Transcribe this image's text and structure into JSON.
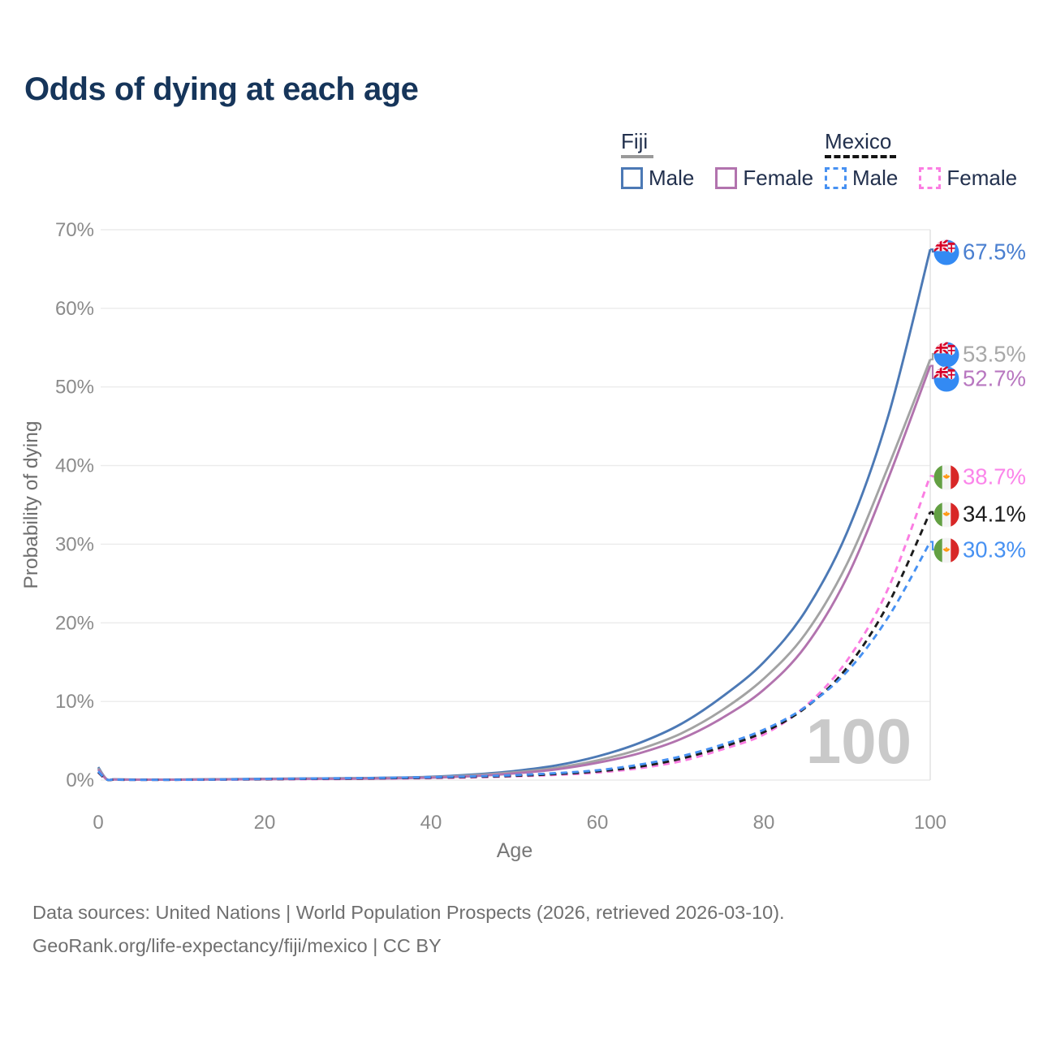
{
  "title": "Odds of dying at each age",
  "legend": {
    "groups": [
      {
        "label": "Fiji",
        "line_style": "solid",
        "underline_color": "#9a9a9a",
        "items": [
          {
            "label": "Male",
            "color": "#4c79b5"
          },
          {
            "label": "Female",
            "color": "#b273ae"
          }
        ]
      },
      {
        "label": "Mexico",
        "line_style": "dashed",
        "underline_color": "#141414",
        "items": [
          {
            "label": "Male",
            "color": "#4791f2"
          },
          {
            "label": "Female",
            "color": "#fb7de2"
          }
        ]
      }
    ]
  },
  "watermark_age": "100",
  "footer": {
    "line1": "Data sources: United Nations | World Population Prospects (2026, retrieved 2026-03-10).",
    "line2": "GeoRank.org/life-expectancy/fiji/mexico | CC BY"
  },
  "chart_data": {
    "type": "line",
    "title": "Odds of dying at each age",
    "xlabel": "Age",
    "ylabel": "Probability of dying",
    "xlim": [
      0,
      100
    ],
    "ylim_pct": [
      0,
      70
    ],
    "x_tick_labels": [
      "0",
      "20",
      "40",
      "60",
      "80",
      "100"
    ],
    "x_tick_values": [
      0,
      20,
      40,
      60,
      80,
      100
    ],
    "y_tick_labels": [
      "0%",
      "10%",
      "20%",
      "30%",
      "40%",
      "50%",
      "60%",
      "70%"
    ],
    "y_tick_values": [
      0,
      10,
      20,
      30,
      40,
      50,
      60,
      70
    ],
    "grid": "horizontal",
    "hover_age": 100,
    "ages": [
      0,
      1,
      2,
      5,
      10,
      15,
      20,
      25,
      30,
      35,
      40,
      45,
      50,
      55,
      60,
      65,
      70,
      75,
      80,
      85,
      90,
      95,
      100
    ],
    "series": [
      {
        "name": "Fiji Male",
        "country": "Fiji",
        "sex": "Male",
        "line_style": "solid",
        "color": "#4c79b5",
        "label_color": "#4a7fd0",
        "end_label": "67.5%",
        "end_value_pct": 67.5,
        "flag": "fiji-flag-icon",
        "values_pct": [
          1.65,
          0.12,
          0.09,
          0.06,
          0.07,
          0.11,
          0.16,
          0.2,
          0.24,
          0.3,
          0.42,
          0.7,
          1.15,
          1.85,
          3.0,
          4.7,
          7.1,
          10.6,
          15.0,
          21.5,
          31.5,
          46.5,
          67.5
        ]
      },
      {
        "name": "Fiji Both sexes",
        "country": "Fiji",
        "sex": "Both",
        "line_style": "solid",
        "color": "#a3a3a3",
        "label_color": "#a8a8a8",
        "end_label": "53.5%",
        "end_value_pct": 53.5,
        "flag": "fiji-flag-icon",
        "values_pct": [
          1.5,
          0.11,
          0.08,
          0.05,
          0.06,
          0.09,
          0.13,
          0.17,
          0.2,
          0.26,
          0.36,
          0.6,
          0.98,
          1.55,
          2.5,
          3.9,
          5.9,
          8.9,
          12.9,
          18.6,
          27.5,
          40.0,
          53.5
        ]
      },
      {
        "name": "Fiji Female",
        "country": "Fiji",
        "sex": "Female",
        "line_style": "solid",
        "color": "#b273ae",
        "label_color": "#b877c0",
        "end_label": "52.7%",
        "end_value_pct": 52.7,
        "flag": "fiji-flag-icon",
        "values_pct": [
          1.35,
          0.1,
          0.07,
          0.05,
          0.05,
          0.08,
          0.11,
          0.14,
          0.17,
          0.22,
          0.3,
          0.5,
          0.85,
          1.35,
          2.2,
          3.4,
          5.2,
          7.9,
          11.5,
          17.0,
          25.8,
          38.5,
          52.7
        ]
      },
      {
        "name": "Mexico Female",
        "country": "Mexico",
        "sex": "Female",
        "line_style": "dashed",
        "color": "#fb7de2",
        "label_color": "#fb85ea",
        "end_label": "38.7%",
        "end_value_pct": 38.7,
        "flag": "mexico-flag-icon",
        "values_pct": [
          0.95,
          0.07,
          0.05,
          0.03,
          0.03,
          0.05,
          0.08,
          0.11,
          0.14,
          0.19,
          0.25,
          0.34,
          0.47,
          0.66,
          0.95,
          1.5,
          2.4,
          3.9,
          5.8,
          9.4,
          15.2,
          24.5,
          38.7
        ]
      },
      {
        "name": "Mexico Both sexes",
        "country": "Mexico",
        "sex": "Both",
        "line_style": "dashed",
        "color": "#1c1c1c",
        "label_color": "#1c1c1c",
        "end_label": "34.1%",
        "end_value_pct": 34.1,
        "flag": "mexico-flag-icon",
        "values_pct": [
          1.0,
          0.07,
          0.05,
          0.03,
          0.04,
          0.07,
          0.11,
          0.15,
          0.19,
          0.24,
          0.3,
          0.4,
          0.54,
          0.76,
          1.1,
          1.7,
          2.7,
          4.2,
          6.1,
          9.2,
          14.3,
          22.5,
          34.1
        ]
      },
      {
        "name": "Mexico Male",
        "country": "Mexico",
        "sex": "Male",
        "line_style": "dashed",
        "color": "#4791f2",
        "label_color": "#4791f2",
        "end_label": "30.3%",
        "end_value_pct": 30.3,
        "flag": "mexico-flag-icon",
        "values_pct": [
          1.1,
          0.08,
          0.06,
          0.03,
          0.04,
          0.08,
          0.14,
          0.19,
          0.24,
          0.29,
          0.36,
          0.47,
          0.62,
          0.88,
          1.25,
          1.95,
          3.0,
          4.5,
          6.4,
          9.3,
          13.8,
          20.8,
          30.3
        ]
      }
    ]
  }
}
